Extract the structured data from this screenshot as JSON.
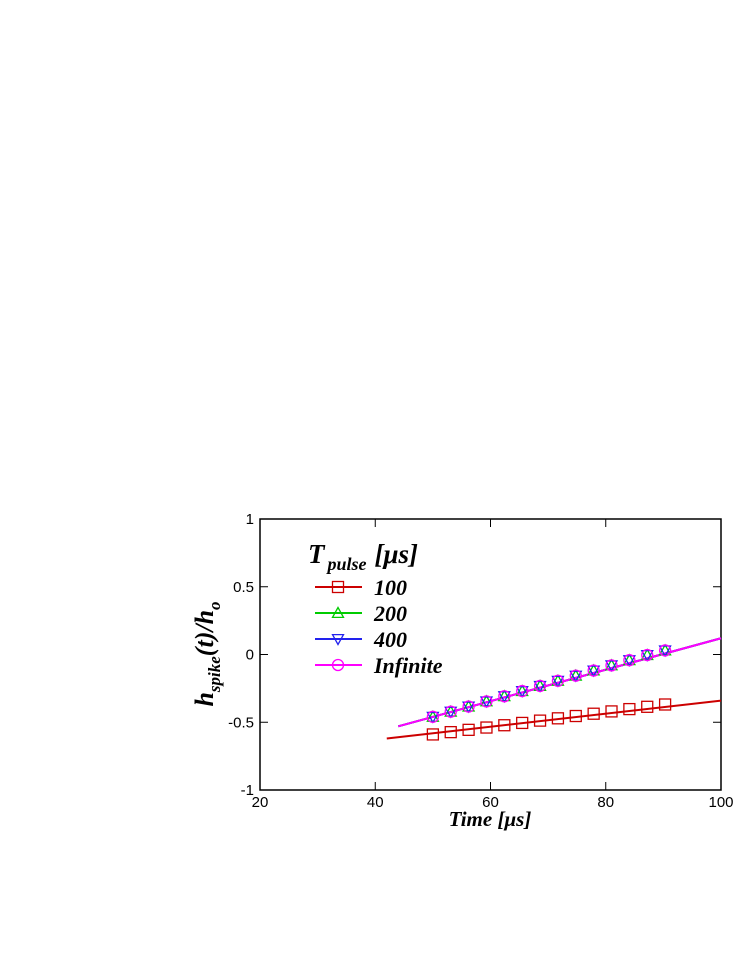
{
  "chart_data": {
    "type": "line",
    "x_label": {
      "main": "Time",
      "unit": "[μs]"
    },
    "y_label": {
      "main": "h",
      "sub": "spike",
      "mid": "(t)/h",
      "sub2": "o"
    },
    "legend_title": {
      "main": "T",
      "sub": "pulse",
      "unit": "[μs]"
    },
    "legend": "upper left",
    "xlim": [
      20,
      100
    ],
    "xticks": [
      20,
      40,
      60,
      80,
      100
    ],
    "ylim": [
      -1,
      1
    ],
    "yticks": [
      -1,
      -0.5,
      0,
      0.5,
      1
    ],
    "series": [
      {
        "name": "100",
        "color": "#cc0000",
        "marker": "square",
        "x": [
          50,
          53.1,
          56.2,
          59.3,
          62.4,
          65.5,
          68.6,
          71.7,
          74.8,
          77.9,
          81.0,
          84.1,
          87.2,
          90.3
        ],
        "values": [
          -0.59,
          -0.573,
          -0.556,
          -0.539,
          -0.522,
          -0.505,
          -0.488,
          -0.471,
          -0.454,
          -0.437,
          -0.42,
          -0.403,
          -0.386,
          -0.369
        ],
        "fit": {
          "x": [
            42,
            100
          ],
          "values": [
            -0.62,
            -0.34
          ]
        }
      },
      {
        "name": "200",
        "color": "#00cc00",
        "marker": "triangle-up",
        "x": [
          50,
          53.1,
          56.2,
          59.3,
          62.4,
          65.5,
          68.6,
          71.7,
          74.8,
          77.9,
          81.0,
          84.1,
          87.2,
          90.3
        ],
        "values": [
          -0.46,
          -0.422,
          -0.384,
          -0.346,
          -0.308,
          -0.27,
          -0.232,
          -0.194,
          -0.156,
          -0.118,
          -0.08,
          -0.042,
          -0.004,
          0.03
        ],
        "fit": {
          "x": [
            44,
            100
          ],
          "values": [
            -0.53,
            0.12
          ]
        }
      },
      {
        "name": "400",
        "color": "#2222ee",
        "marker": "triangle-down",
        "x": [
          50,
          53.1,
          56.2,
          59.3,
          62.4,
          65.5,
          68.6,
          71.7,
          74.8,
          77.9,
          81.0,
          84.1,
          87.2,
          90.3
        ],
        "values": [
          -0.46,
          -0.422,
          -0.384,
          -0.346,
          -0.308,
          -0.27,
          -0.232,
          -0.194,
          -0.156,
          -0.118,
          -0.08,
          -0.042,
          -0.004,
          0.03
        ],
        "fit": {
          "x": [
            44,
            100
          ],
          "values": [
            -0.53,
            0.12
          ]
        }
      },
      {
        "name": "Infinite",
        "color": "#ff00ff",
        "marker": "circle",
        "x": [
          50,
          53.1,
          56.2,
          59.3,
          62.4,
          65.5,
          68.6,
          71.7,
          74.8,
          77.9,
          81.0,
          84.1,
          87.2,
          90.3
        ],
        "values": [
          -0.46,
          -0.422,
          -0.384,
          -0.346,
          -0.308,
          -0.27,
          -0.232,
          -0.194,
          -0.156,
          -0.118,
          -0.08,
          -0.042,
          -0.004,
          0.03
        ],
        "fit": {
          "x": [
            44,
            100
          ],
          "values": [
            -0.53,
            0.12
          ]
        }
      }
    ]
  }
}
